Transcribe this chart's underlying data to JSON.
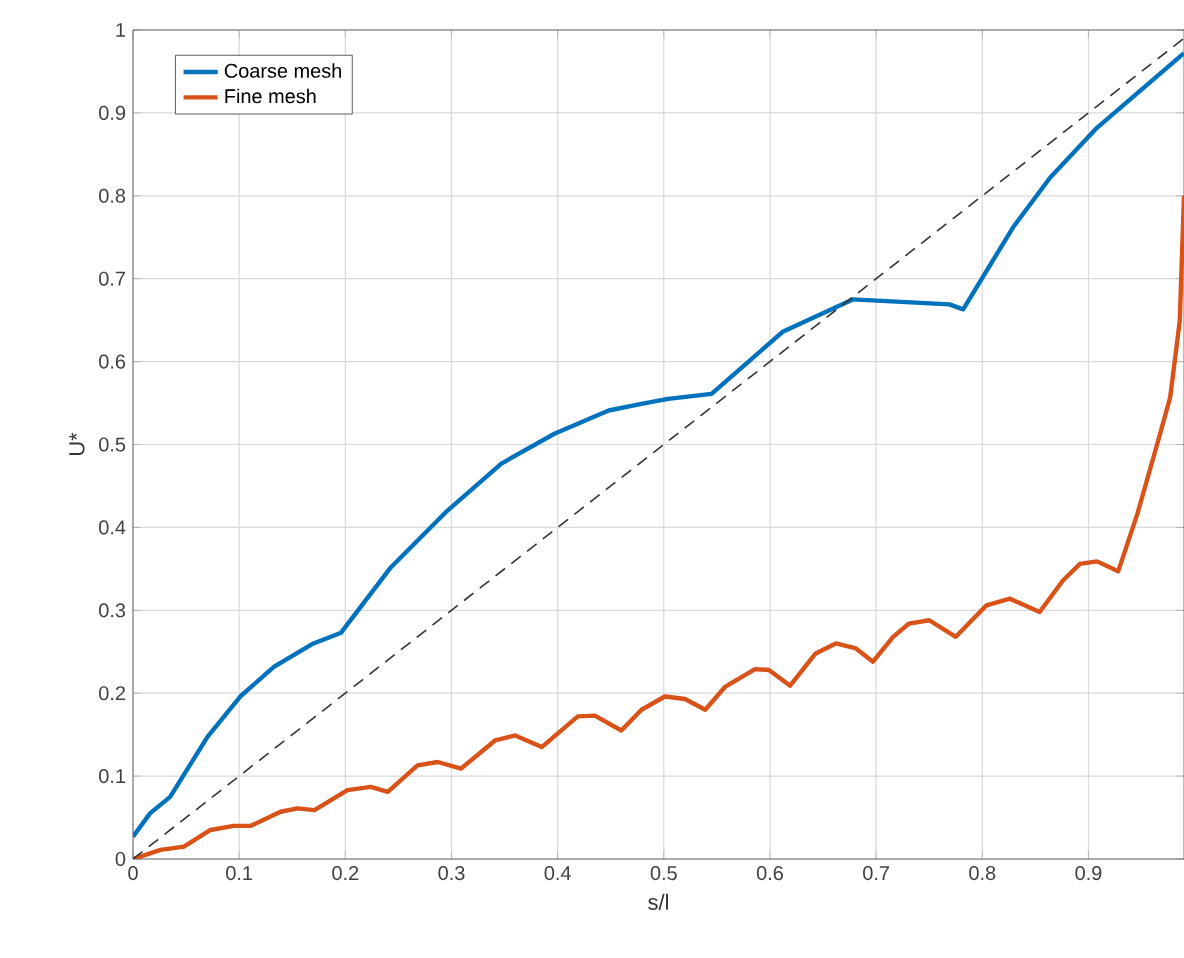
{
  "chart_data": {
    "type": "line",
    "xlabel": "s/l",
    "ylabel": "U*",
    "xlim": [
      0,
      0.99
    ],
    "ylim": [
      0,
      1
    ],
    "xticks": [
      0,
      0.1,
      0.2,
      0.3,
      0.4,
      0.5,
      0.6,
      0.7,
      0.8,
      0.9
    ],
    "yticks": [
      0,
      0.1,
      0.2,
      0.3,
      0.4,
      0.5,
      0.6,
      0.7,
      0.8,
      0.9,
      1
    ],
    "grid": true,
    "legend": "top left",
    "marker": "none",
    "series": [
      {
        "name": "Coarse mesh",
        "color": "#0072bd",
        "line_style": "solid",
        "x": [
          0,
          0.016,
          0.035,
          0.07,
          0.101,
          0.133,
          0.17,
          0.196,
          0.243,
          0.296,
          0.347,
          0.397,
          0.448,
          0.479,
          0.504,
          0.545,
          0.612,
          0.678,
          0.769,
          0.782,
          0.829,
          0.864,
          0.908,
          0.99
        ],
        "values": [
          0.027,
          0.055,
          0.075,
          0.147,
          0.196,
          0.232,
          0.26,
          0.273,
          0.352,
          0.42,
          0.477,
          0.513,
          0.541,
          0.549,
          0.555,
          0.561,
          0.636,
          0.675,
          0.669,
          0.663,
          0.762,
          0.822,
          0.882,
          0.972
        ]
      },
      {
        "name": "Fine mesh",
        "color": "#d95319",
        "line_style": "solid",
        "x": [
          0,
          0.026,
          0.048,
          0.073,
          0.095,
          0.111,
          0.139,
          0.155,
          0.171,
          0.202,
          0.224,
          0.24,
          0.268,
          0.287,
          0.309,
          0.341,
          0.36,
          0.385,
          0.419,
          0.435,
          0.46,
          0.479,
          0.501,
          0.52,
          0.539,
          0.558,
          0.586,
          0.599,
          0.619,
          0.643,
          0.662,
          0.681,
          0.697,
          0.716,
          0.731,
          0.75,
          0.775,
          0.804,
          0.826,
          0.854,
          0.876,
          0.892,
          0.908,
          0.928,
          0.946,
          0.964,
          0.977,
          0.986,
          0.99
        ],
        "values": [
          0,
          0.011,
          0.015,
          0.035,
          0.04,
          0.04,
          0.057,
          0.061,
          0.059,
          0.083,
          0.087,
          0.081,
          0.113,
          0.117,
          0.109,
          0.143,
          0.149,
          0.135,
          0.172,
          0.173,
          0.155,
          0.18,
          0.196,
          0.193,
          0.18,
          0.208,
          0.229,
          0.228,
          0.209,
          0.248,
          0.26,
          0.254,
          0.238,
          0.268,
          0.284,
          0.288,
          0.268,
          0.306,
          0.314,
          0.298,
          0.336,
          0.356,
          0.359,
          0.347,
          0.416,
          0.497,
          0.557,
          0.649,
          0.8
        ]
      },
      {
        "color": "#333333",
        "line_style": "dashed",
        "x": [
          0,
          0.99
        ],
        "values": [
          0,
          0.99
        ]
      }
    ]
  }
}
